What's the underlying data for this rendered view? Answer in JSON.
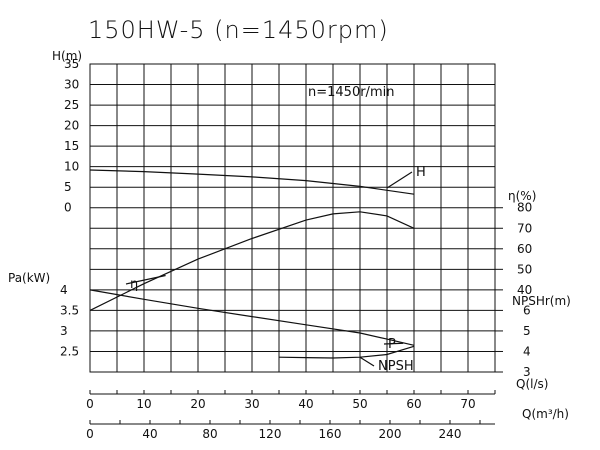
{
  "chart_data": {
    "type": "line",
    "title": "150HW-5   (n=1450rpm)",
    "annotation": "n=1450r/min",
    "x_axes": {
      "q_ls": {
        "label": "Q(l/s)",
        "ticks": [
          0,
          10,
          20,
          30,
          40,
          50,
          60,
          70
        ],
        "range": [
          0,
          75
        ]
      },
      "q_m3h": {
        "label": "Q(m³/h)",
        "ticks": [
          0,
          40,
          80,
          120,
          160,
          200,
          240
        ]
      }
    },
    "y_axes": {
      "head": {
        "label": "H(m)",
        "ticks": [
          0,
          5,
          10,
          15,
          20,
          25,
          30,
          35
        ],
        "range": [
          0,
          35
        ]
      },
      "power": {
        "label": "Pa(kW)",
        "ticks": [
          2.5,
          3,
          3.5,
          4
        ],
        "range": [
          2,
          4
        ]
      },
      "efficiency": {
        "label": "η(%)",
        "ticks": [
          40,
          50,
          60,
          70,
          80
        ],
        "range": [
          30,
          80
        ]
      },
      "npsh": {
        "label": "NPSHr(m)",
        "ticks": [
          3,
          4,
          5,
          6
        ],
        "range": [
          3,
          6
        ]
      }
    },
    "series": [
      {
        "name": "H",
        "axis": "head",
        "x": [
          0,
          10,
          20,
          30,
          40,
          50,
          60
        ],
        "y": [
          9.2,
          8.8,
          8.2,
          7.5,
          6.6,
          5.2,
          3.3
        ]
      },
      {
        "name": "η",
        "axis": "efficiency",
        "x": [
          0,
          10,
          20,
          30,
          40,
          45,
          50,
          55,
          60
        ],
        "y": [
          30,
          43,
          55,
          65,
          74,
          77,
          78,
          76,
          70
        ]
      },
      {
        "name": "P",
        "axis": "power",
        "x": [
          0,
          10,
          20,
          30,
          40,
          50,
          55,
          60
        ],
        "y": [
          4.0,
          3.77,
          3.55,
          3.35,
          3.15,
          2.95,
          2.8,
          2.65
        ]
      },
      {
        "name": "NPSH",
        "axis": "npsh",
        "x": [
          35,
          40,
          45,
          50,
          55,
          60
        ],
        "y": [
          3.72,
          3.7,
          3.68,
          3.72,
          3.85,
          4.25
        ]
      }
    ],
    "grid": true
  }
}
